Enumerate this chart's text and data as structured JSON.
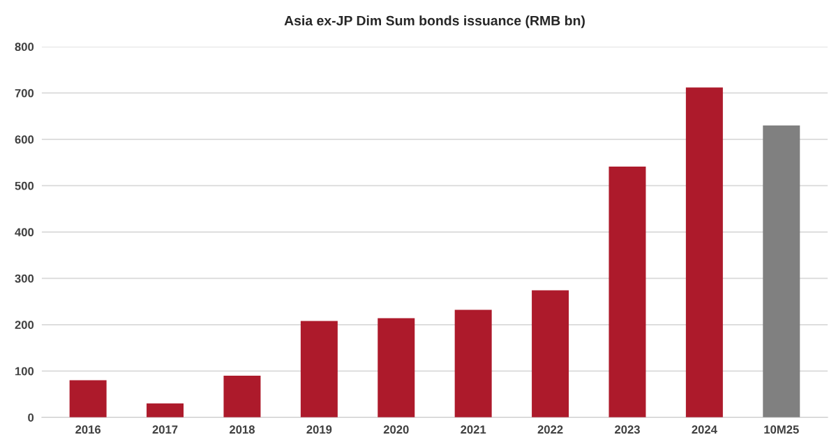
{
  "chart_data": {
    "type": "bar",
    "title": "Asia ex-JP Dim Sum bonds issuance (RMB bn)",
    "categories": [
      "2016",
      "2017",
      "2018",
      "2019",
      "2020",
      "2021",
      "2022",
      "2023",
      "2024",
      "10M25"
    ],
    "values": [
      80,
      30,
      90,
      208,
      214,
      232,
      274,
      541,
      712,
      630
    ],
    "colors": [
      "#ad1a2b",
      "#ad1a2b",
      "#ad1a2b",
      "#ad1a2b",
      "#ad1a2b",
      "#ad1a2b",
      "#ad1a2b",
      "#ad1a2b",
      "#ad1a2b",
      "#808080"
    ],
    "ylim": [
      0,
      800
    ],
    "yticks": [
      0,
      100,
      200,
      300,
      400,
      500,
      600,
      700,
      800
    ],
    "grid": "y",
    "legend": false
  }
}
